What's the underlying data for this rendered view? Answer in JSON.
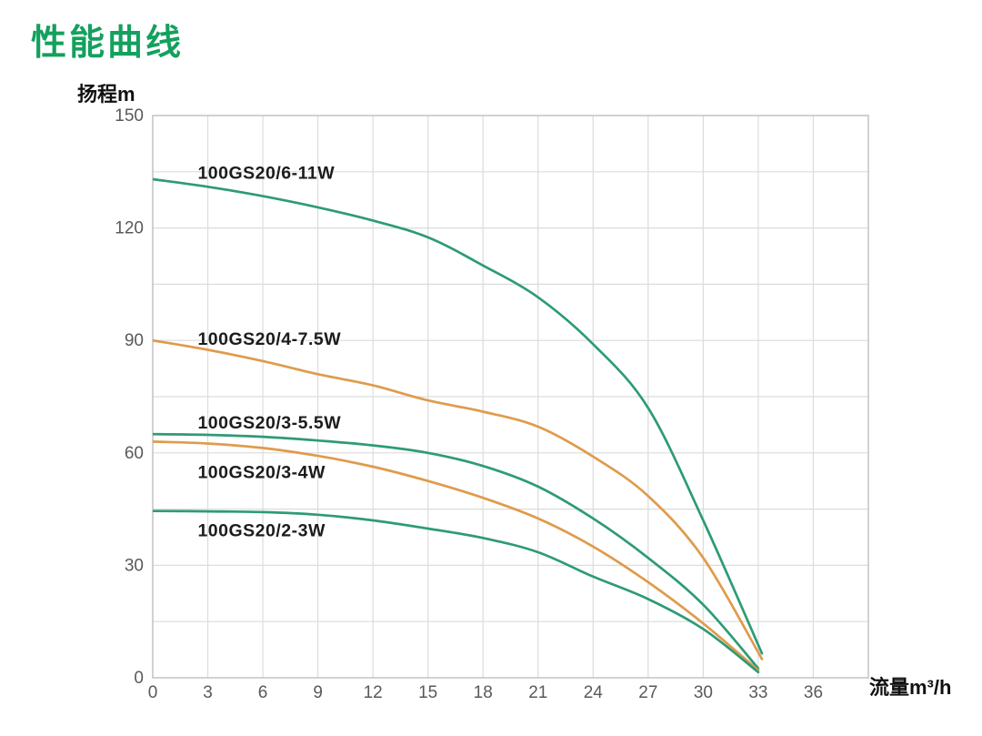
{
  "page": {
    "background": "#ffffff"
  },
  "chart_data": {
    "type": "line",
    "title": "性能曲线",
    "xlabel": "流量m³/h",
    "ylabel": "扬程m",
    "xlim": [
      0,
      39
    ],
    "ylim": [
      0,
      150
    ],
    "x_ticks": [
      0,
      3,
      6,
      9,
      12,
      15,
      18,
      21,
      24,
      27,
      30,
      33,
      36
    ],
    "y_ticks": [
      0,
      30,
      60,
      90,
      120,
      150
    ],
    "x_grid_step": 3,
    "y_grid_step": 15,
    "grid": true,
    "legend_position": "inline-curve-labels",
    "colors": {
      "green_curve": "#2E9B76",
      "orange_curve": "#DF9B4C",
      "title": "#14A05E",
      "grid": "#DCDCDC",
      "frame": "#C6C6C6",
      "tick_text": "#595959",
      "label_text": "#1C1C1C"
    },
    "series": [
      {
        "name": "100GS20/6-11W",
        "color_key": "green_curve",
        "label_pos": {
          "x": 2.45,
          "y": 134.8
        },
        "points": [
          [
            0,
            133
          ],
          [
            3,
            131
          ],
          [
            6,
            128.5
          ],
          [
            9,
            125.5
          ],
          [
            12,
            122
          ],
          [
            15,
            117.5
          ],
          [
            18,
            110
          ],
          [
            21,
            101.5
          ],
          [
            24,
            89
          ],
          [
            27,
            72
          ],
          [
            30,
            42
          ],
          [
            33.2,
            6.5
          ]
        ]
      },
      {
        "name": "100GS20/4-7.5W",
        "color_key": "orange_curve",
        "label_pos": {
          "x": 2.45,
          "y": 90.5
        },
        "points": [
          [
            0,
            90
          ],
          [
            3,
            87.5
          ],
          [
            6,
            84.5
          ],
          [
            9,
            81
          ],
          [
            12,
            78
          ],
          [
            15,
            74
          ],
          [
            18,
            71
          ],
          [
            21,
            67
          ],
          [
            24,
            59
          ],
          [
            27,
            48.5
          ],
          [
            30,
            32
          ],
          [
            33.2,
            5
          ]
        ]
      },
      {
        "name": "100GS20/3-5.5W",
        "color_key": "green_curve",
        "label_pos": {
          "x": 2.45,
          "y": 68.2
        },
        "points": [
          [
            0,
            65
          ],
          [
            3,
            64.8
          ],
          [
            6,
            64.3
          ],
          [
            9,
            63.3
          ],
          [
            12,
            62
          ],
          [
            15,
            60
          ],
          [
            18,
            56.5
          ],
          [
            21,
            51
          ],
          [
            24,
            42.5
          ],
          [
            27,
            32
          ],
          [
            30,
            19.5
          ],
          [
            33,
            2.5
          ]
        ]
      },
      {
        "name": "100GS20/3-4W",
        "color_key": "orange_curve",
        "label_pos": {
          "x": 2.45,
          "y": 55.0
        },
        "points": [
          [
            0,
            63
          ],
          [
            3,
            62.5
          ],
          [
            6,
            61.3
          ],
          [
            9,
            59.2
          ],
          [
            12,
            56.3
          ],
          [
            15,
            52.5
          ],
          [
            18,
            48
          ],
          [
            21,
            42.5
          ],
          [
            24,
            35
          ],
          [
            27,
            25.5
          ],
          [
            30,
            14.5
          ],
          [
            33,
            2
          ]
        ]
      },
      {
        "name": "100GS20/2-3W",
        "color_key": "green_curve",
        "label_pos": {
          "x": 2.45,
          "y": 39.5
        },
        "points": [
          [
            0,
            44.5
          ],
          [
            3,
            44.4
          ],
          [
            6,
            44.2
          ],
          [
            9,
            43.5
          ],
          [
            12,
            42
          ],
          [
            15,
            39.8
          ],
          [
            18,
            37.3
          ],
          [
            21,
            33.5
          ],
          [
            24,
            27
          ],
          [
            27,
            21
          ],
          [
            30,
            13
          ],
          [
            33,
            1.5
          ]
        ]
      }
    ]
  }
}
